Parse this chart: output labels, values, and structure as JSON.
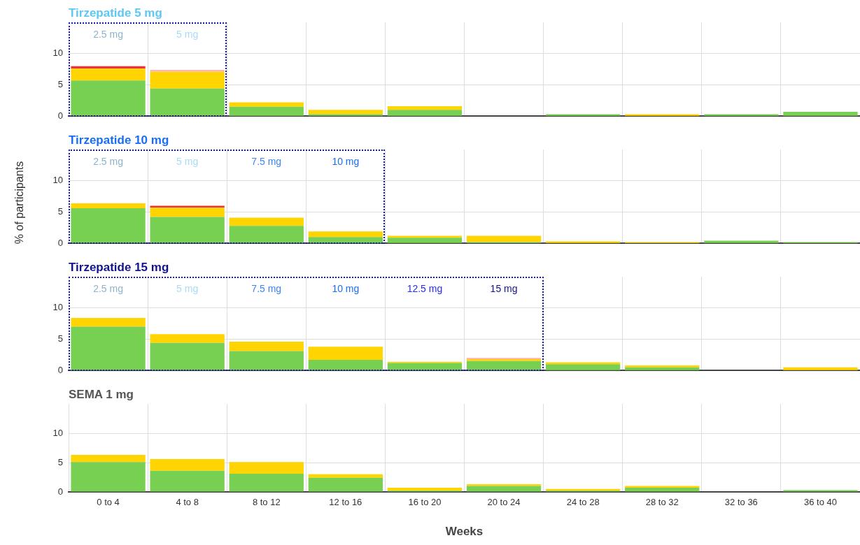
{
  "chart_data": [
    {
      "type": "bar",
      "title": "Tirzepatide 5 mg",
      "stacked": true,
      "grid": true,
      "legend": false,
      "tick_labels": "y",
      "categories": [
        null,
        null,
        null,
        null,
        null,
        null,
        null,
        null,
        null,
        null
      ],
      "ylim": [
        0,
        15
      ],
      "yticks": [
        0,
        5,
        10
      ],
      "series": [
        {
          "color": "#77d051",
          "values": [
            5.7,
            4.4,
            1.5,
            0.3,
            1.0,
            null,
            0.3,
            null,
            0.3,
            0.7
          ]
        },
        {
          "color": "#ffd400",
          "values": [
            1.9,
            2.7,
            0.7,
            0.7,
            0.6,
            null,
            null,
            0.3,
            null,
            null
          ]
        },
        {
          "color": "#ffb3b3",
          "values": [
            null,
            0.3,
            null,
            null,
            null,
            null,
            null,
            null,
            null,
            null
          ]
        },
        {
          "color": "#ee3333",
          "values": [
            0.4,
            null,
            null,
            null,
            null,
            null,
            null,
            null,
            null,
            null
          ]
        }
      ],
      "annotations": [
        "2.5 mg",
        "5 mg"
      ]
    },
    {
      "type": "bar",
      "title": "Tirzepatide 10 mg",
      "ylabel": "% of participants",
      "stacked": true,
      "grid": true,
      "legend": false,
      "tick_labels": "y",
      "categories": [
        null,
        null,
        null,
        null,
        null,
        null,
        null,
        null,
        null,
        null
      ],
      "ylim": [
        0,
        15
      ],
      "yticks": [
        0,
        5,
        10
      ],
      "series": [
        {
          "color": "#77d051",
          "values": [
            5.6,
            4.2,
            2.8,
            1.0,
            0.9,
            0.2,
            null,
            null,
            0.4,
            0.2
          ]
        },
        {
          "color": "#ffd400",
          "values": [
            0.8,
            1.5,
            1.3,
            0.9,
            0.3,
            1.0,
            0.3,
            0.2,
            null,
            null
          ]
        },
        {
          "color": "#ffb3b3",
          "values": [
            null,
            null,
            null,
            null,
            null,
            null,
            null,
            null,
            null,
            null
          ]
        },
        {
          "color": "#ee3333",
          "values": [
            null,
            0.3,
            null,
            null,
            null,
            null,
            null,
            null,
            null,
            null
          ]
        }
      ],
      "annotations": [
        "2.5 mg",
        "5 mg",
        "7.5 mg",
        "10 mg"
      ]
    },
    {
      "type": "bar",
      "title": "Tirzepatide 15 mg",
      "stacked": true,
      "grid": true,
      "legend": false,
      "tick_labels": "y",
      "categories": [
        null,
        null,
        null,
        null,
        null,
        null,
        null,
        null,
        null,
        null
      ],
      "ylim": [
        0,
        15
      ],
      "yticks": [
        0,
        5,
        10
      ],
      "series": [
        {
          "color": "#77d051",
          "values": [
            7.0,
            4.4,
            3.1,
            1.7,
            1.2,
            1.5,
            1.0,
            0.5,
            null,
            null
          ]
        },
        {
          "color": "#ffd400",
          "values": [
            1.4,
            1.4,
            1.5,
            2.1,
            0.2,
            0.3,
            0.3,
            0.3,
            null,
            0.5
          ]
        },
        {
          "color": "#ffb3b3",
          "values": [
            null,
            null,
            null,
            null,
            null,
            0.2,
            null,
            null,
            null,
            null
          ]
        },
        {
          "color": "#ee3333",
          "values": [
            null,
            null,
            null,
            null,
            null,
            null,
            null,
            null,
            null,
            null
          ]
        }
      ],
      "annotations": [
        "2.5 mg",
        "5 mg",
        "7.5 mg",
        "10 mg",
        "12.5 mg",
        "15 mg"
      ]
    },
    {
      "type": "bar",
      "title": "SEMA 1 mg",
      "xlabel": "Weeks",
      "stacked": true,
      "grid": true,
      "legend": false,
      "categories": [
        "0 to 4",
        "4 to 8",
        "8 to 12",
        "12 to 16",
        "16 to 20",
        "20 to 24",
        "24 to 28",
        "28 to 32",
        "32 to 36",
        "36 to 40"
      ],
      "ylim": [
        0,
        15
      ],
      "yticks": [
        0,
        5,
        10
      ],
      "series": [
        {
          "color": "#77d051",
          "values": [
            5.1,
            3.6,
            3.1,
            2.4,
            0.2,
            1.0,
            0.2,
            0.7,
            null,
            0.3
          ]
        },
        {
          "color": "#ffd400",
          "values": [
            1.2,
            2.0,
            2.0,
            0.6,
            0.5,
            0.3,
            0.3,
            0.3,
            null,
            null
          ]
        },
        {
          "color": "#ffb3b3",
          "values": [
            null,
            null,
            null,
            null,
            null,
            null,
            null,
            null,
            null,
            null
          ]
        },
        {
          "color": "#ee3333",
          "values": [
            null,
            null,
            null,
            null,
            null,
            null,
            null,
            null,
            null,
            null
          ]
        }
      ]
    }
  ]
}
